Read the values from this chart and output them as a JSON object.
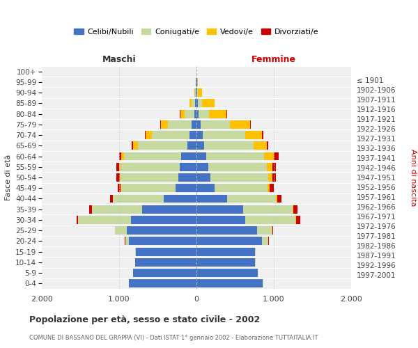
{
  "age_groups": [
    "0-4",
    "5-9",
    "10-14",
    "15-19",
    "20-24",
    "25-29",
    "30-34",
    "35-39",
    "40-44",
    "45-49",
    "50-54",
    "55-59",
    "60-64",
    "65-69",
    "70-74",
    "75-79",
    "80-84",
    "85-89",
    "90-94",
    "95-99",
    "100+"
  ],
  "birth_years": [
    "1997-2001",
    "1992-1996",
    "1987-1991",
    "1982-1986",
    "1977-1981",
    "1972-1976",
    "1967-1971",
    "1962-1966",
    "1957-1961",
    "1952-1956",
    "1947-1951",
    "1942-1946",
    "1937-1941",
    "1932-1936",
    "1927-1931",
    "1922-1926",
    "1917-1921",
    "1912-1916",
    "1907-1911",
    "1902-1906",
    "≤ 1901"
  ],
  "colors": {
    "celibi": "#4472C4",
    "coniugati": "#c5d9a0",
    "vedovi": "#ffc000",
    "divorziati": "#cc0000"
  },
  "maschi": {
    "celibi": [
      870,
      820,
      790,
      780,
      870,
      900,
      850,
      700,
      420,
      270,
      230,
      220,
      200,
      120,
      90,
      60,
      30,
      20,
      10,
      5,
      2
    ],
    "coniugati": [
      2,
      3,
      5,
      10,
      50,
      150,
      680,
      650,
      660,
      700,
      750,
      760,
      740,
      640,
      490,
      310,
      120,
      40,
      10,
      2,
      0
    ],
    "vedovi": [
      0,
      0,
      0,
      0,
      1,
      2,
      2,
      3,
      5,
      10,
      15,
      20,
      30,
      60,
      80,
      90,
      60,
      30,
      8,
      2,
      0
    ],
    "divorziati": [
      0,
      0,
      0,
      0,
      3,
      5,
      20,
      30,
      30,
      40,
      40,
      40,
      30,
      15,
      10,
      5,
      2,
      0,
      0,
      0,
      0
    ]
  },
  "femmine": {
    "celibi": [
      860,
      790,
      760,
      760,
      850,
      780,
      630,
      600,
      400,
      230,
      180,
      150,
      130,
      100,
      80,
      55,
      30,
      20,
      12,
      5,
      2
    ],
    "coniugati": [
      2,
      3,
      5,
      10,
      80,
      200,
      650,
      640,
      630,
      690,
      750,
      760,
      740,
      640,
      550,
      380,
      130,
      55,
      10,
      2,
      0
    ],
    "vedovi": [
      0,
      0,
      0,
      0,
      2,
      3,
      5,
      8,
      15,
      30,
      50,
      70,
      130,
      170,
      220,
      260,
      230,
      160,
      50,
      10,
      2
    ],
    "divorziati": [
      0,
      0,
      0,
      0,
      5,
      10,
      55,
      60,
      50,
      50,
      50,
      50,
      60,
      20,
      15,
      10,
      5,
      2,
      0,
      0,
      0
    ]
  },
  "title": "Popolazione per età, sesso e stato civile - 2002",
  "subtitle": "COMUNE DI BASSANO DEL GRAPPA (VI) - Dati ISTAT 1° gennaio 2002 - Elaborazione TUTTAITALIA.IT",
  "legend_labels": [
    "Celibi/Nubili",
    "Coniugati/e",
    "Vedovi/e",
    "Divorziati/e"
  ],
  "xlim": 2000,
  "xlabel_left": "Maschi",
  "xlabel_right": "Femmine",
  "ylabel_left": "Fasce di età",
  "ylabel_right": "Anni di nascita",
  "bg_color": "#ffffff",
  "plot_bg": "#f0f0f0",
  "grid_color": "#cccccc"
}
